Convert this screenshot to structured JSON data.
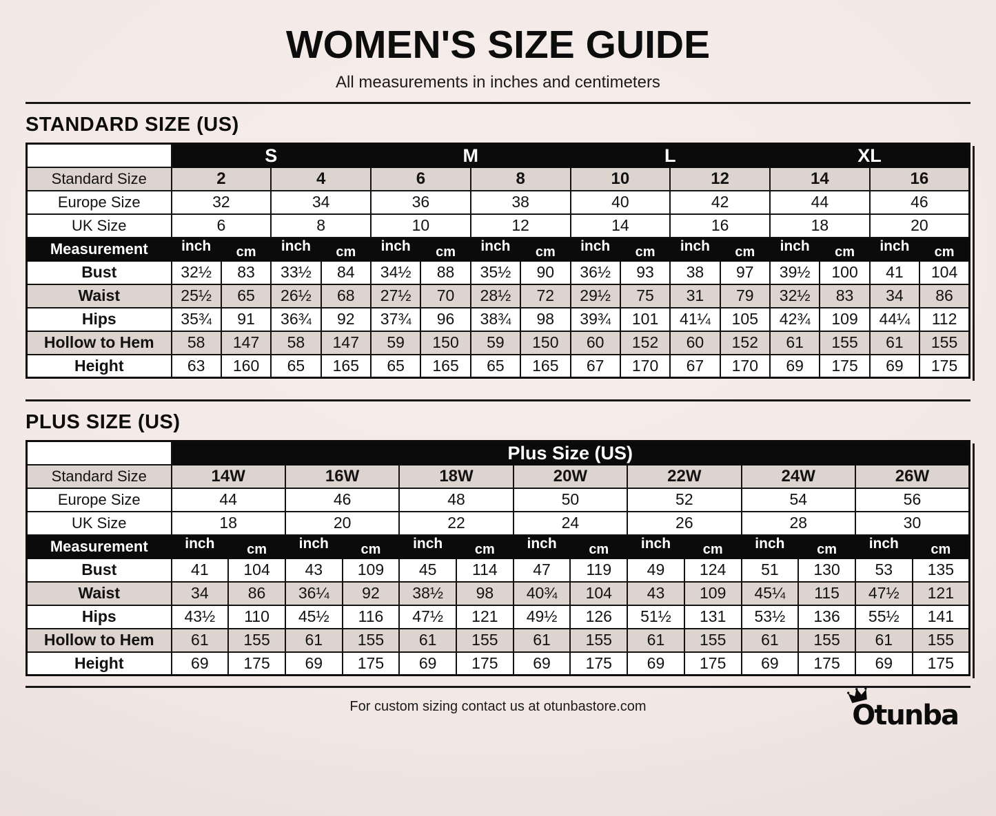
{
  "page": {
    "title": "WOMEN'S SIZE GUIDE",
    "subtitle": "All measurements in inches and centimeters",
    "footer_note": "For custom sizing contact us at otunbastore.com",
    "brand": "Otunba"
  },
  "units": {
    "inch": "inch",
    "cm": "cm"
  },
  "colors": {
    "background": "#f2e8e5",
    "row_alt": "#ddd3cf",
    "bar": "#0b0b0b",
    "text": "#121212",
    "white": "#ffffff"
  },
  "standard_table": {
    "heading": "STANDARD SIZE (US)",
    "size_groups": [
      "S",
      "M",
      "L",
      "XL"
    ],
    "row_labels": {
      "standard_size": "Standard Size",
      "europe_size": "Europe Size",
      "uk_size": "UK Size",
      "measurement": "Measurement"
    },
    "standard_sizes": [
      "2",
      "4",
      "6",
      "8",
      "10",
      "12",
      "14",
      "16"
    ],
    "europe_sizes": [
      "32",
      "34",
      "36",
      "38",
      "40",
      "42",
      "44",
      "46"
    ],
    "uk_sizes": [
      "6",
      "8",
      "10",
      "12",
      "14",
      "16",
      "18",
      "20"
    ],
    "measurements": [
      {
        "label": "Bust",
        "values": [
          "32½",
          "83",
          "33½",
          "84",
          "34½",
          "88",
          "35½",
          "90",
          "36½",
          "93",
          "38",
          "97",
          "39½",
          "100",
          "41",
          "104"
        ]
      },
      {
        "label": "Waist",
        "values": [
          "25½",
          "65",
          "26½",
          "68",
          "27½",
          "70",
          "28½",
          "72",
          "29½",
          "75",
          "31",
          "79",
          "32½",
          "83",
          "34",
          "86"
        ]
      },
      {
        "label": "Hips",
        "values": [
          "35¾",
          "91",
          "36¾",
          "92",
          "37¾",
          "96",
          "38¾",
          "98",
          "39¾",
          "101",
          "41¼",
          "105",
          "42¾",
          "109",
          "44¼",
          "112"
        ]
      },
      {
        "label": "Hollow to Hem",
        "values": [
          "58",
          "147",
          "58",
          "147",
          "59",
          "150",
          "59",
          "150",
          "60",
          "152",
          "60",
          "152",
          "61",
          "155",
          "61",
          "155"
        ]
      },
      {
        "label": "Height",
        "values": [
          "63",
          "160",
          "65",
          "165",
          "65",
          "165",
          "65",
          "165",
          "67",
          "170",
          "67",
          "170",
          "69",
          "175",
          "69",
          "175"
        ]
      }
    ]
  },
  "plus_table": {
    "heading": "PLUS SIZE (US)",
    "header_title": "Plus Size (US)",
    "row_labels": {
      "standard_size": "Standard Size",
      "europe_size": "Europe Size",
      "uk_size": "UK Size",
      "measurement": "Measurement"
    },
    "standard_sizes": [
      "14W",
      "16W",
      "18W",
      "20W",
      "22W",
      "24W",
      "26W"
    ],
    "europe_sizes": [
      "44",
      "46",
      "48",
      "50",
      "52",
      "54",
      "56"
    ],
    "uk_sizes": [
      "18",
      "20",
      "22",
      "24",
      "26",
      "28",
      "30"
    ],
    "measurements": [
      {
        "label": "Bust",
        "values": [
          "41",
          "104",
          "43",
          "109",
          "45",
          "114",
          "47",
          "119",
          "49",
          "124",
          "51",
          "130",
          "53",
          "135"
        ]
      },
      {
        "label": "Waist",
        "values": [
          "34",
          "86",
          "36¼",
          "92",
          "38½",
          "98",
          "40¾",
          "104",
          "43",
          "109",
          "45¼",
          "115",
          "47½",
          "121"
        ]
      },
      {
        "label": "Hips",
        "values": [
          "43½",
          "110",
          "45½",
          "116",
          "47½",
          "121",
          "49½",
          "126",
          "51½",
          "131",
          "53½",
          "136",
          "55½",
          "141"
        ]
      },
      {
        "label": "Hollow to Hem",
        "values": [
          "61",
          "155",
          "61",
          "155",
          "61",
          "155",
          "61",
          "155",
          "61",
          "155",
          "61",
          "155",
          "61",
          "155"
        ]
      },
      {
        "label": "Height",
        "values": [
          "69",
          "175",
          "69",
          "175",
          "69",
          "175",
          "69",
          "175",
          "69",
          "175",
          "69",
          "175",
          "69",
          "175"
        ]
      }
    ]
  }
}
